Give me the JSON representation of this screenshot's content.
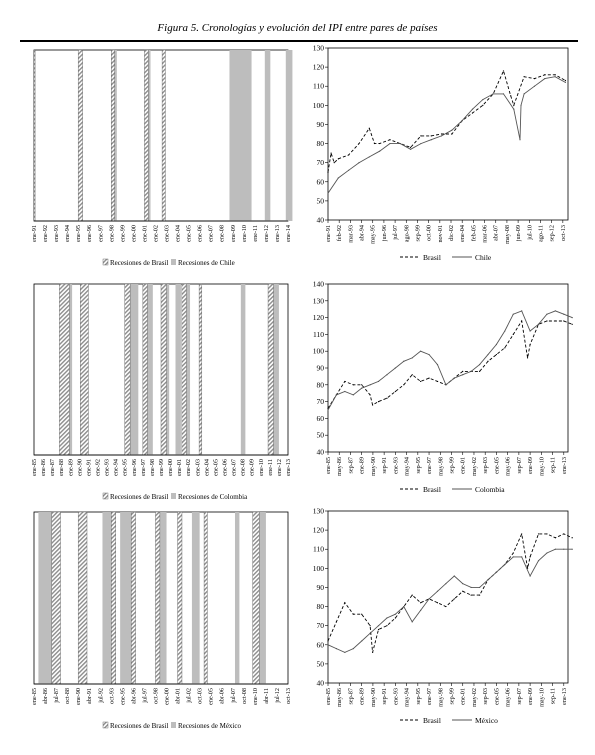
{
  "figure": {
    "caption": "Figura 5. Cronologías y evolución del IPI entre pares de países"
  },
  "chart_data": [
    {
      "type": "timeline",
      "x_ticks": [
        "ene-91",
        "ene-92",
        "ene-93",
        "ene-94",
        "ene-95",
        "ene-96",
        "ene-97",
        "ene-98",
        "ene-99",
        "ene-00",
        "ene-01",
        "ene-02",
        "ene-03",
        "ene-04",
        "ene-05",
        "ene-06",
        "ene-07",
        "ene-08",
        "ene-09",
        "ene-10",
        "ene-11",
        "ene-12",
        "ene-13",
        "ene-14"
      ],
      "legend": [
        "Recesiones de Brasil",
        "Recesiones de Chile"
      ],
      "recessions_a": [
        [
          0.0,
          0.1
        ],
        [
          4.0,
          4.4
        ],
        [
          7.0,
          7.3
        ],
        [
          10.0,
          10.35
        ],
        [
          11.6,
          11.9
        ]
      ],
      "recessions_b": [
        [
          7.0,
          7.5
        ],
        [
          10.3,
          10.55
        ],
        [
          17.7,
          19.7
        ],
        [
          20.9,
          21.4
        ],
        [
          22.8,
          23.4
        ]
      ],
      "colors": {
        "pattern": "#8c8c8c",
        "solid": "#bdbdbd"
      }
    },
    {
      "type": "line",
      "x_ticks": [
        "ene-91",
        "feb-92",
        "mar-93",
        "abr-94",
        "may-95",
        "jun-96",
        "jul-97",
        "ago-98",
        "sep-99",
        "oct-00",
        "nov-01",
        "dic-02",
        "ene-04",
        "feb-05",
        "mar-06",
        "abr-07",
        "may-08",
        "jun-09",
        "jul-10",
        "ago-11",
        "sep-12",
        "oct-13"
      ],
      "ylim": [
        40,
        130
      ],
      "y_ticks": [
        40,
        50,
        60,
        70,
        80,
        90,
        100,
        110,
        120,
        130
      ],
      "series": [
        {
          "name": "Brasil",
          "style": "dashed",
          "x": [
            1991,
            1991.3,
            1991.6,
            1992,
            1993,
            1994,
            1995,
            1995.5,
            1996,
            1997,
            1998,
            1999,
            2000,
            2001,
            2002,
            2003,
            2004,
            2005,
            2006,
            2007,
            2008,
            2008.7,
            2009,
            2010,
            2011,
            2012,
            2013,
            2014
          ],
          "y": [
            65,
            75,
            70,
            72,
            74,
            80,
            88,
            80,
            80,
            82,
            80,
            78,
            84,
            84,
            85,
            85,
            92,
            96,
            100,
            106,
            118,
            105,
            100,
            115,
            114,
            116,
            116,
            113
          ]
        },
        {
          "name": "Chile",
          "style": "solid",
          "x": [
            1991,
            1992,
            1993,
            1994,
            1995,
            1996,
            1997,
            1998,
            1999,
            2000,
            2001,
            2002,
            2003,
            2004,
            2005,
            2006,
            2007,
            2008,
            2009,
            2009.6,
            2009.7,
            2010,
            2011,
            2012,
            2013,
            2014
          ],
          "y": [
            54,
            62,
            66,
            70,
            73,
            76,
            80,
            80,
            77,
            80,
            82,
            84,
            87,
            92,
            98,
            103,
            106,
            106,
            98,
            82,
            100,
            106,
            110,
            114,
            115,
            112
          ]
        }
      ],
      "legend": [
        "Brasil",
        "Chile"
      ]
    },
    {
      "type": "timeline",
      "x_ticks": [
        "ene-85",
        "ene-86",
        "ene-87",
        "ene-88",
        "ene-89",
        "ene-90",
        "ene-91",
        "ene-92",
        "ene-93",
        "ene-94",
        "ene-95",
        "ene-96",
        "ene-97",
        "ene-98",
        "ene-99",
        "ene-00",
        "ene-01",
        "ene-02",
        "ene-03",
        "ene-04",
        "ene-05",
        "ene-06",
        "ene-07",
        "ene-08",
        "ene-09",
        "ene-10",
        "ene-11",
        "ene-12",
        "ene-13"
      ],
      "legend": [
        "Recesiones de Brasil",
        "Recesiones de Colombia"
      ],
      "recessions_a": [
        [
          2.8,
          3.9
        ],
        [
          5.1,
          6.0
        ],
        [
          10.0,
          10.6
        ],
        [
          12.0,
          12.5
        ],
        [
          14.0,
          14.6
        ],
        [
          16.3,
          16.8
        ],
        [
          18.2,
          18.5
        ],
        [
          25.8,
          26.4
        ]
      ],
      "recessions_b": [
        [
          3.9,
          4.2
        ],
        [
          10.6,
          11.5
        ],
        [
          12.5,
          13.1
        ],
        [
          14.6,
          14.9
        ],
        [
          15.6,
          16.2
        ],
        [
          16.8,
          17.2
        ],
        [
          22.8,
          23.3
        ],
        [
          26.4,
          27.0
        ]
      ],
      "colors": {
        "pattern": "#8c8c8c",
        "solid": "#bdbdbd"
      }
    },
    {
      "type": "line",
      "x_ticks": [
        "ene-85",
        "may-86",
        "sep-87",
        "ene-89",
        "may-90",
        "sep-91",
        "ene-93",
        "may-94",
        "sep-95",
        "ene-97",
        "may-98",
        "sep-99",
        "ene-01",
        "may-02",
        "sep-03",
        "ene-05",
        "may-06",
        "sep-07",
        "ene-09",
        "may-10",
        "sep-11",
        "ene-13"
      ],
      "ylim": [
        40,
        140
      ],
      "y_ticks": [
        40,
        50,
        60,
        70,
        80,
        90,
        100,
        110,
        120,
        130,
        140
      ],
      "series": [
        {
          "name": "Brasil",
          "style": "dashed",
          "x": [
            1985,
            1986,
            1987,
            1988,
            1989,
            1990,
            1990.3,
            1991,
            1992,
            1993,
            1994,
            1995,
            1996,
            1997,
            1998,
            1999,
            2000,
            2001,
            2002,
            2003,
            2004,
            2005,
            2006,
            2007,
            2008,
            2008.7,
            2009,
            2010,
            2011,
            2012,
            2013,
            2014
          ],
          "y": [
            66,
            74,
            82,
            80,
            80,
            74,
            68,
            70,
            72,
            76,
            80,
            86,
            82,
            84,
            82,
            80,
            84,
            88,
            88,
            88,
            94,
            98,
            102,
            110,
            118,
            96,
            104,
            116,
            118,
            118,
            118,
            116
          ]
        },
        {
          "name": "Colombia",
          "style": "solid",
          "x": [
            1985,
            1986,
            1987,
            1988,
            1989,
            1990,
            1991,
            1992,
            1993,
            1994,
            1995,
            1996,
            1997,
            1998,
            1999,
            2000,
            2001,
            2002,
            2003,
            2004,
            2005,
            2006,
            2007,
            2008,
            2009,
            2010,
            2011,
            2012,
            2013,
            2014
          ],
          "y": [
            65,
            74,
            76,
            74,
            78,
            80,
            82,
            86,
            90,
            94,
            96,
            100,
            98,
            92,
            80,
            84,
            86,
            88,
            92,
            98,
            104,
            112,
            122,
            124,
            112,
            116,
            122,
            124,
            122,
            120
          ]
        }
      ],
      "legend": [
        "Brasil",
        "Colombia"
      ]
    },
    {
      "type": "timeline",
      "x_ticks": [
        "ene-85",
        "abr-86",
        "jul-87",
        "oct-88",
        "ene-90",
        "abr-91",
        "jul-92",
        "oct-93",
        "ene-95",
        "abr-96",
        "jul-97",
        "oct-98",
        "ene-00",
        "abr-01",
        "jul-02",
        "oct-03",
        "ene-05",
        "abr-06",
        "jul-07",
        "oct-08",
        "ene-10",
        "abr-11",
        "jul-12",
        "oct-13"
      ],
      "legend": [
        "Recesiones de Brasil",
        "Recesiones de México"
      ],
      "recessions_a": [
        [
          1.6,
          2.4
        ],
        [
          4.0,
          4.8
        ],
        [
          7.0,
          7.4
        ],
        [
          8.8,
          9.2
        ],
        [
          11.0,
          11.4
        ],
        [
          13.0,
          13.4
        ],
        [
          15.4,
          15.7
        ],
        [
          19.8,
          20.4
        ]
      ],
      "recessions_b": [
        [
          0.4,
          1.6
        ],
        [
          6.2,
          7.0
        ],
        [
          7.8,
          8.8
        ],
        [
          11.4,
          12.0
        ],
        [
          14.3,
          15.0
        ],
        [
          18.2,
          18.6
        ],
        [
          20.4,
          21.0
        ]
      ],
      "colors": {
        "pattern": "#8c8c8c",
        "solid": "#bdbdbd"
      }
    },
    {
      "type": "line",
      "x_ticks": [
        "ene-85",
        "may-86",
        "sep-87",
        "ene-89",
        "may-90",
        "sep-91",
        "ene-93",
        "may-94",
        "sep-95",
        "ene-97",
        "may-98",
        "sep-99",
        "ene-01",
        "may-02",
        "sep-03",
        "ene-05",
        "may-06",
        "sep-07",
        "ene-09",
        "may-10",
        "sep-11",
        "ene-13"
      ],
      "ylim": [
        40,
        130
      ],
      "y_ticks": [
        40,
        50,
        60,
        70,
        80,
        90,
        100,
        110,
        120,
        130
      ],
      "series": [
        {
          "name": "Brasil",
          "style": "dashed",
          "x": [
            1985,
            1986,
            1987,
            1988,
            1989,
            1990,
            1990.3,
            1991,
            1992,
            1993,
            1994,
            1995,
            1996,
            1997,
            1998,
            1999,
            2000,
            2001,
            2002,
            2003,
            2004,
            2005,
            2006,
            2007,
            2008,
            2008.7,
            2009,
            2010,
            2011,
            2012,
            2013,
            2014
          ],
          "y": [
            62,
            72,
            82,
            76,
            76,
            70,
            56,
            68,
            70,
            74,
            80,
            86,
            82,
            84,
            82,
            80,
            84,
            88,
            86,
            86,
            94,
            98,
            102,
            108,
            118,
            100,
            106,
            118,
            118,
            116,
            118,
            116
          ]
        },
        {
          "name": "México",
          "style": "solid",
          "x": [
            1985,
            1986,
            1987,
            1988,
            1989,
            1990,
            1991,
            1992,
            1993,
            1994,
            1995,
            1996,
            1997,
            1998,
            1999,
            2000,
            2001,
            2002,
            2003,
            2004,
            2005,
            2006,
            2007,
            2008,
            2009,
            2010,
            2011,
            2012,
            2013,
            2014
          ],
          "y": [
            60,
            58,
            56,
            58,
            62,
            66,
            70,
            74,
            76,
            80,
            72,
            78,
            84,
            88,
            92,
            96,
            92,
            90,
            90,
            94,
            98,
            102,
            106,
            106,
            96,
            104,
            108,
            110,
            110,
            110
          ]
        }
      ],
      "legend": [
        "Brasil",
        "México"
      ]
    }
  ]
}
